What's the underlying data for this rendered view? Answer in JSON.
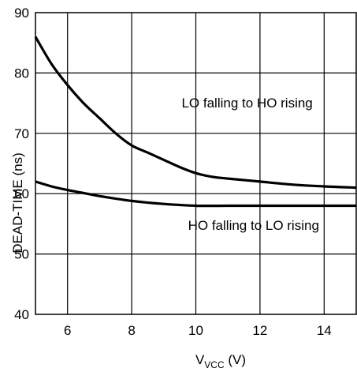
{
  "chart_data": {
    "type": "line",
    "xlabel": {
      "main": "V",
      "sub": "VCC",
      "unit": " (V)"
    },
    "ylabel": "DEAD-TIME (ns)",
    "xlim": [
      5,
      15
    ],
    "ylim": [
      40,
      90
    ],
    "xticks": [
      6,
      8,
      10,
      12,
      14
    ],
    "yticks": [
      40,
      50,
      60,
      70,
      80,
      90
    ],
    "grid": true,
    "series": [
      {
        "x": [
          5,
          5.5,
          6,
          6.5,
          7,
          7.5,
          8,
          8.5,
          9,
          9.5,
          10,
          10.5,
          11,
          12,
          13,
          14,
          15
        ],
        "y": [
          86,
          81.5,
          78,
          75,
          72.5,
          70,
          68,
          66.8,
          65.6,
          64.4,
          63.4,
          62.8,
          62.5,
          62.0,
          61.5,
          61.2,
          61.0
        ]
      },
      {
        "x": [
          5,
          5.5,
          6,
          6.5,
          7,
          8,
          9,
          10,
          11,
          12,
          13,
          14,
          15
        ],
        "y": [
          62,
          61.2,
          60.6,
          60.1,
          59.6,
          58.8,
          58.3,
          58.0,
          58.0,
          58.0,
          58.0,
          58.0,
          58.0
        ]
      }
    ],
    "annotations": [
      {
        "text": "LO falling to HO rising",
        "x": 11.6,
        "y": 74.3
      },
      {
        "text": "HO falling to LO rising",
        "x": 11.8,
        "y": 54.0
      }
    ],
    "line_color": "#000000"
  }
}
